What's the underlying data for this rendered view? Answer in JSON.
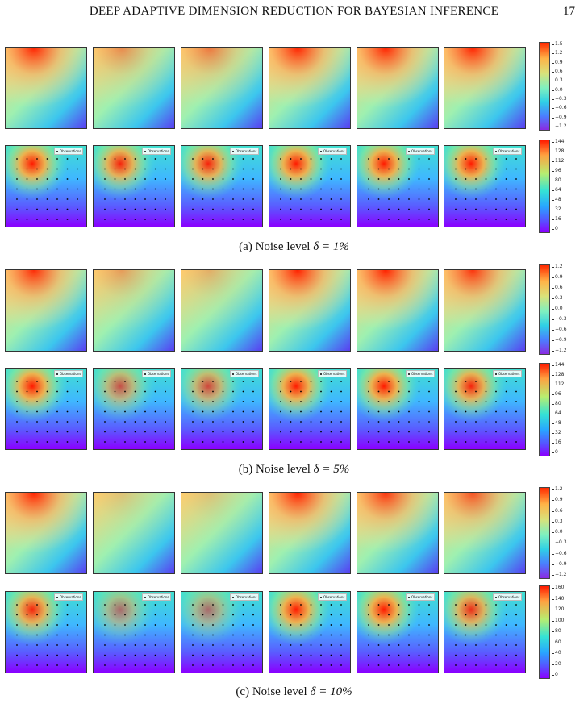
{
  "header": {
    "running_title": "DEEP ADAPTIVE DIMENSION REDUCTION FOR BAYESIAN INFERENCE",
    "page_number": "17"
  },
  "legend_label": "Observations",
  "subfigures": [
    {
      "caption_label": "(a) Noise level",
      "caption_math": "δ = 1%",
      "field_colorbar_ticks": [
        "1.5",
        "1.2",
        "0.9",
        "0.6",
        "0.3",
        "0.0",
        "−0.3",
        "−0.6",
        "−0.9",
        "−1.2"
      ],
      "obs_colorbar_ticks": [
        "144",
        "128",
        "112",
        "96",
        "80",
        "64",
        "48",
        "32",
        "16",
        "0"
      ],
      "field_top_intensity": [
        1.0,
        0.45,
        0.55,
        1.0,
        1.0,
        1.0
      ],
      "obs_peak_intensity": [
        1.0,
        0.95,
        0.95,
        1.0,
        1.0,
        1.0
      ]
    },
    {
      "caption_label": "(b) Noise level",
      "caption_math": "δ = 5%",
      "field_colorbar_ticks": [
        "1.2",
        "0.9",
        "0.6",
        "0.3",
        "0.0",
        "−0.3",
        "−0.6",
        "−0.9",
        "−1.2"
      ],
      "obs_colorbar_ticks": [
        "144",
        "128",
        "112",
        "96",
        "80",
        "64",
        "48",
        "32",
        "16",
        "0"
      ],
      "field_top_intensity": [
        0.95,
        0.35,
        0.25,
        1.0,
        1.0,
        0.9
      ],
      "obs_peak_intensity": [
        1.0,
        0.7,
        0.75,
        1.0,
        1.0,
        0.95
      ]
    },
    {
      "caption_label": "(c) Noise level",
      "caption_math": "δ = 10%",
      "field_colorbar_ticks": [
        "1.2",
        "0.9",
        "0.6",
        "0.3",
        "0.0",
        "−0.3",
        "−0.6",
        "−0.9",
        "−1.2"
      ],
      "obs_colorbar_ticks": [
        "160",
        "140",
        "120",
        "100",
        "80",
        "60",
        "40",
        "20",
        "0"
      ],
      "field_top_intensity": [
        1.0,
        0.15,
        0.15,
        1.0,
        0.9,
        0.75
      ],
      "obs_peak_intensity": [
        0.95,
        0.55,
        0.55,
        1.0,
        1.0,
        0.9
      ]
    }
  ]
}
